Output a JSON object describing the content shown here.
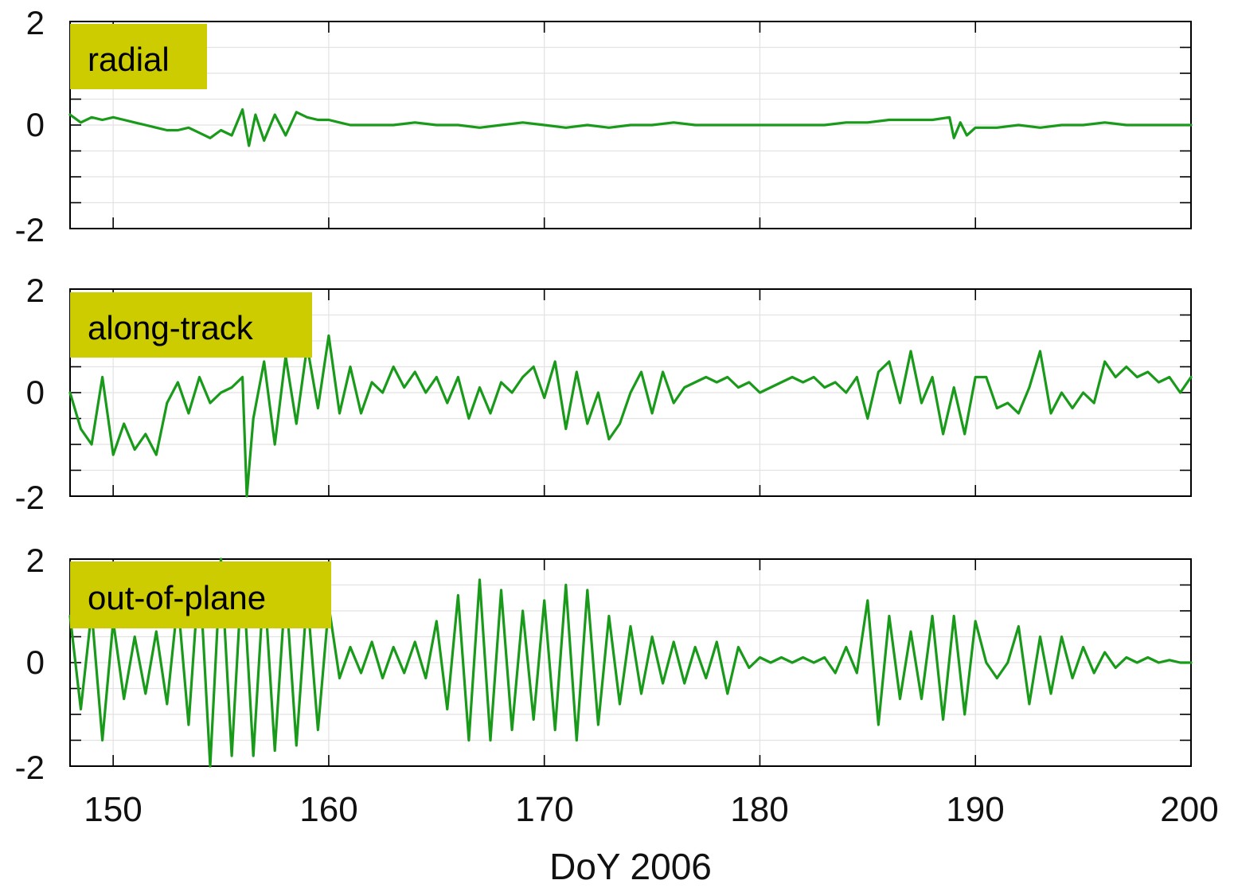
{
  "chart_data": [
    {
      "type": "line",
      "panel_label": "radial",
      "xlim": [
        148,
        200
      ],
      "ylim": [
        -2,
        2
      ],
      "yticks": [
        "2",
        "0",
        "-2"
      ],
      "grid": true,
      "color": "#1a9a1a",
      "label_box_color": "#cccc00",
      "series": [
        {
          "x": [
            148,
            148.5,
            149,
            149.5,
            150,
            150.5,
            151,
            151.5,
            152,
            152.5,
            153,
            153.5,
            154,
            154.5,
            155,
            155.5,
            156,
            156.3,
            156.6,
            157,
            157.5,
            158,
            158.5,
            159,
            159.5,
            160,
            160.5,
            161,
            162,
            163,
            164,
            165,
            166,
            167,
            168,
            169,
            170,
            171,
            172,
            173,
            174,
            175,
            176,
            177,
            178,
            179,
            180,
            181,
            182,
            183,
            184,
            185,
            186,
            187,
            188,
            188.8,
            189,
            189.3,
            189.6,
            190,
            191,
            192,
            193,
            194,
            195,
            196,
            197,
            198,
            199,
            200
          ],
          "y": [
            0.2,
            0.05,
            0.15,
            0.1,
            0.15,
            0.1,
            0.05,
            0.0,
            -0.05,
            -0.1,
            -0.1,
            -0.05,
            -0.15,
            -0.25,
            -0.1,
            -0.2,
            0.3,
            -0.4,
            0.2,
            -0.3,
            0.2,
            -0.2,
            0.25,
            0.15,
            0.1,
            0.1,
            0.05,
            0.0,
            0.0,
            0.0,
            0.05,
            0.0,
            0.0,
            -0.05,
            0.0,
            0.05,
            0.0,
            -0.05,
            0.0,
            -0.05,
            0.0,
            0.0,
            0.05,
            0.0,
            0.0,
            0.0,
            0.0,
            0.0,
            0.0,
            0.0,
            0.05,
            0.05,
            0.1,
            0.1,
            0.1,
            0.15,
            -0.25,
            0.05,
            -0.2,
            -0.05,
            -0.05,
            0.0,
            -0.05,
            0.0,
            0.0,
            0.05,
            0.0,
            0.0,
            0.0,
            0.0
          ]
        }
      ]
    },
    {
      "type": "line",
      "panel_label": "along-track",
      "xlim": [
        148,
        200
      ],
      "ylim": [
        -2,
        2
      ],
      "yticks": [
        "2",
        "0",
        "-2"
      ],
      "grid": true,
      "color": "#1a9a1a",
      "label_box_color": "#cccc00",
      "series": [
        {
          "x": [
            148,
            148.5,
            149,
            149.5,
            150,
            150.5,
            151,
            151.5,
            152,
            152.5,
            153,
            153.5,
            154,
            154.5,
            155,
            155.5,
            156,
            156.2,
            156.5,
            157,
            157.5,
            158,
            158.5,
            159,
            159.5,
            160,
            160.5,
            161,
            161.5,
            162,
            162.5,
            163,
            163.5,
            164,
            164.5,
            165,
            165.5,
            166,
            166.5,
            167,
            167.5,
            168,
            168.5,
            169,
            169.5,
            170,
            170.5,
            171,
            171.5,
            172,
            172.5,
            173,
            173.5,
            174,
            174.5,
            175,
            175.5,
            176,
            176.5,
            177,
            177.5,
            178,
            178.5,
            179,
            179.5,
            180,
            180.5,
            181,
            181.5,
            182,
            182.5,
            183,
            183.5,
            184,
            184.5,
            185,
            185.5,
            186,
            186.5,
            187,
            187.5,
            188,
            188.5,
            189,
            189.5,
            190,
            190.5,
            191,
            191.5,
            192,
            192.5,
            193,
            193.5,
            194,
            194.5,
            195,
            195.5,
            196,
            196.5,
            197,
            197.5,
            198,
            198.5,
            199,
            199.5,
            200
          ],
          "y": [
            0.0,
            -0.7,
            -1.0,
            0.3,
            -1.2,
            -0.6,
            -1.1,
            -0.8,
            -1.2,
            -0.2,
            0.2,
            -0.4,
            0.3,
            -0.2,
            0.0,
            0.1,
            0.3,
            -2.0,
            -0.5,
            0.6,
            -1.0,
            0.7,
            -0.6,
            0.9,
            -0.3,
            1.1,
            -0.4,
            0.5,
            -0.4,
            0.2,
            0.0,
            0.5,
            0.1,
            0.4,
            0.0,
            0.3,
            -0.2,
            0.3,
            -0.5,
            0.1,
            -0.4,
            0.2,
            0.0,
            0.3,
            0.5,
            -0.1,
            0.6,
            -0.7,
            0.4,
            -0.6,
            0.0,
            -0.9,
            -0.6,
            0.0,
            0.4,
            -0.4,
            0.4,
            -0.2,
            0.1,
            0.2,
            0.3,
            0.2,
            0.3,
            0.1,
            0.2,
            0.0,
            0.1,
            0.2,
            0.3,
            0.2,
            0.3,
            0.1,
            0.2,
            0.0,
            0.3,
            -0.5,
            0.4,
            0.6,
            -0.2,
            0.8,
            -0.2,
            0.3,
            -0.8,
            0.1,
            -0.8,
            0.3,
            0.3,
            -0.3,
            -0.2,
            -0.4,
            0.1,
            0.8,
            -0.4,
            0.0,
            -0.3,
            0.0,
            -0.2,
            0.6,
            0.3,
            0.5,
            0.3,
            0.4,
            0.2,
            0.3,
            0.0,
            0.3
          ]
        }
      ]
    },
    {
      "type": "line",
      "panel_label": "out-of-plane",
      "xlim": [
        148,
        200
      ],
      "ylim": [
        -2,
        2
      ],
      "yticks": [
        "2",
        "0",
        "-2"
      ],
      "grid": true,
      "color": "#1a9a1a",
      "label_box_color": "#cccc00",
      "series": [
        {
          "x": [
            148,
            148.5,
            149,
            149.5,
            150,
            150.5,
            151,
            151.5,
            152,
            152.5,
            153,
            153.5,
            154,
            154.5,
            155,
            155.5,
            156,
            156.5,
            157,
            157.5,
            158,
            158.5,
            159,
            159.5,
            160,
            160.5,
            161,
            161.5,
            162,
            162.5,
            163,
            163.5,
            164,
            164.5,
            165,
            165.5,
            166,
            166.5,
            167,
            167.5,
            168,
            168.5,
            169,
            169.5,
            170,
            170.5,
            171,
            171.5,
            172,
            172.5,
            173,
            173.5,
            174,
            174.5,
            175,
            175.5,
            176,
            176.5,
            177,
            177.5,
            178,
            178.5,
            179,
            179.5,
            180,
            180.5,
            181,
            181.5,
            182,
            182.5,
            183,
            183.5,
            184,
            184.5,
            185,
            185.5,
            186,
            186.5,
            187,
            187.5,
            188,
            188.5,
            189,
            189.5,
            190,
            190.5,
            191,
            191.5,
            192,
            192.5,
            193,
            193.5,
            194,
            194.5,
            195,
            195.5,
            196,
            196.5,
            197,
            197.5,
            198,
            198.5,
            199,
            199.5,
            200
          ],
          "y": [
            0.9,
            -0.9,
            1.0,
            -1.5,
            0.8,
            -0.7,
            0.5,
            -0.6,
            0.6,
            -0.8,
            1.2,
            -1.2,
            1.8,
            -2.0,
            2.0,
            -1.8,
            1.9,
            -1.8,
            1.6,
            -1.7,
            1.5,
            -1.6,
            1.3,
            -1.3,
            1.1,
            -0.3,
            0.3,
            -0.2,
            0.4,
            -0.3,
            0.3,
            -0.2,
            0.4,
            -0.3,
            0.8,
            -0.9,
            1.3,
            -1.5,
            1.6,
            -1.5,
            1.4,
            -1.3,
            1.0,
            -1.1,
            1.2,
            -1.3,
            1.5,
            -1.5,
            1.4,
            -1.2,
            0.9,
            -0.8,
            0.7,
            -0.6,
            0.5,
            -0.4,
            0.4,
            -0.4,
            0.3,
            -0.3,
            0.4,
            -0.6,
            0.3,
            -0.1,
            0.1,
            0.0,
            0.1,
            0.0,
            0.1,
            0.0,
            0.1,
            -0.2,
            0.3,
            -0.2,
            1.2,
            -1.2,
            0.9,
            -0.7,
            0.6,
            -0.7,
            0.9,
            -1.1,
            0.9,
            -1.0,
            0.8,
            0.0,
            -0.3,
            0.0,
            0.7,
            -0.8,
            0.5,
            -0.6,
            0.5,
            -0.3,
            0.3,
            -0.2,
            0.2,
            -0.1,
            0.1,
            0.0,
            0.1,
            0.0,
            0.05,
            0.0,
            0.0
          ]
        }
      ]
    }
  ],
  "x_axis": {
    "ticks": [
      "150",
      "160",
      "170",
      "180",
      "190",
      "200"
    ],
    "tick_values": [
      150,
      160,
      170,
      180,
      190,
      200
    ],
    "label": "DoY 2006"
  }
}
